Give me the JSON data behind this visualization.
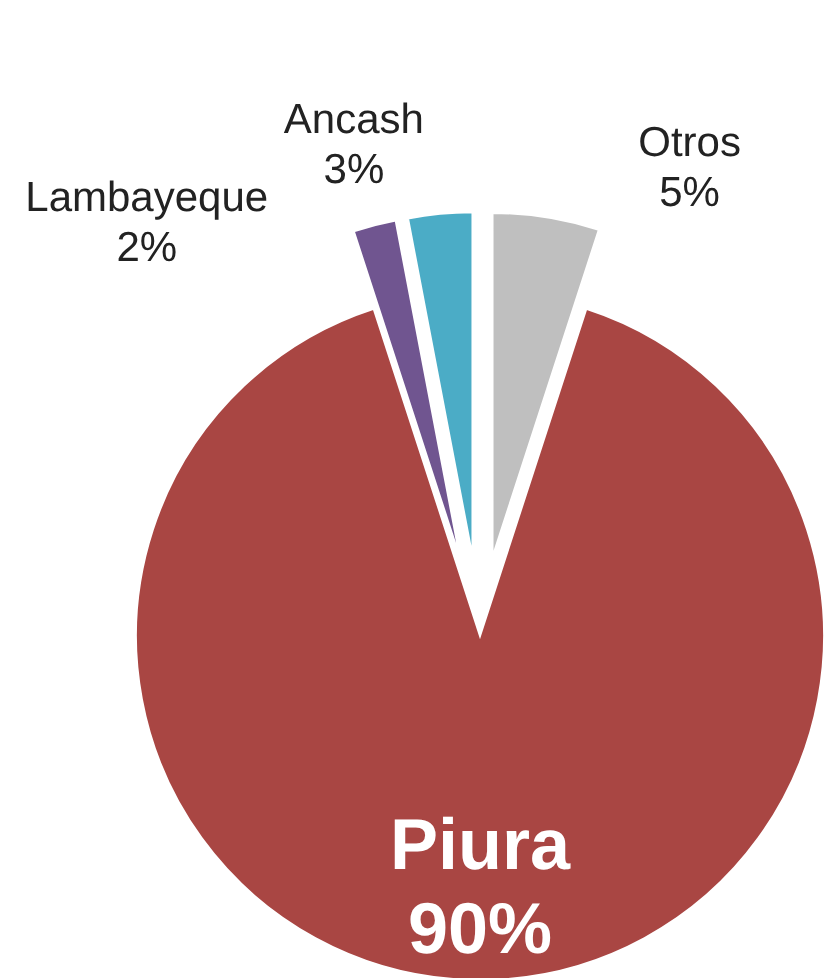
{
  "chart_data": {
    "type": "pie",
    "categories": [
      "Otros",
      "Piura",
      "Lambayeque",
      "Ancash"
    ],
    "values": [
      5,
      90,
      2,
      3
    ],
    "colors": [
      "#bfbfbf",
      "#a94643",
      "#705590",
      "#4bacc6"
    ],
    "value_labels": [
      "5%",
      "90%",
      "2%",
      "3%"
    ]
  }
}
